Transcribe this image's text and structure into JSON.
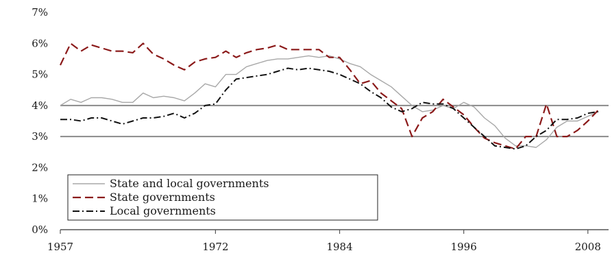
{
  "chart_data": {
    "type": "line",
    "title": "",
    "xlabel": "",
    "ylabel": "",
    "xlim": [
      1957,
      2010
    ],
    "ylim": [
      0,
      7
    ],
    "y_ticks": [
      "0%",
      "1%",
      "2%",
      "3%",
      "4%",
      "5%",
      "6%",
      "7%"
    ],
    "x_ticks": [
      {
        "label": "1957",
        "value": 1957
      },
      {
        "label": "1972",
        "value": 1972
      },
      {
        "label": "1984",
        "value": 1984
      },
      {
        "label": "1996",
        "value": 1996
      },
      {
        "label": "2008",
        "value": 2008
      }
    ],
    "gridlines": [
      4,
      3
    ],
    "legend_position": "bottom-left",
    "series": [
      {
        "name": "State and local governments",
        "color": "#a8a8a8",
        "dash": "solid",
        "x": [
          1957,
          1958,
          1959,
          1960,
          1961,
          1962,
          1963,
          1964,
          1965,
          1966,
          1967,
          1968,
          1969,
          1970,
          1971,
          1972,
          1973,
          1974,
          1975,
          1976,
          1977,
          1978,
          1979,
          1980,
          1981,
          1982,
          1983,
          1984,
          1985,
          1986,
          1987,
          1988,
          1989,
          1990,
          1991,
          1992,
          1993,
          1994,
          1995,
          1996,
          1997,
          1998,
          1999,
          2000,
          2001,
          2002,
          2003,
          2004,
          2005,
          2006,
          2007,
          2008,
          2009
        ],
        "values": [
          4.0,
          4.2,
          4.1,
          4.25,
          4.25,
          4.2,
          4.1,
          4.1,
          4.4,
          4.25,
          4.3,
          4.25,
          4.15,
          4.4,
          4.7,
          4.6,
          5.0,
          5.0,
          5.25,
          5.35,
          5.45,
          5.5,
          5.5,
          5.55,
          5.6,
          5.55,
          5.6,
          5.5,
          5.35,
          5.25,
          5.0,
          4.8,
          4.6,
          4.3,
          4.0,
          3.8,
          3.85,
          4.0,
          3.9,
          4.1,
          3.95,
          3.6,
          3.35,
          2.95,
          2.7,
          2.7,
          2.65,
          2.9,
          3.3,
          3.5,
          3.5,
          3.65,
          3.8
        ]
      },
      {
        "name": "State governments",
        "color": "#8b1a1a",
        "dash": "dashed",
        "x": [
          1957,
          1958,
          1959,
          1960,
          1961,
          1962,
          1963,
          1964,
          1965,
          1966,
          1967,
          1968,
          1969,
          1970,
          1971,
          1972,
          1973,
          1974,
          1975,
          1976,
          1977,
          1978,
          1979,
          1980,
          1981,
          1982,
          1983,
          1984,
          1985,
          1986,
          1987,
          1988,
          1989,
          1990,
          1991,
          1992,
          1993,
          1994,
          1995,
          1996,
          1997,
          1998,
          1999,
          2000,
          2001,
          2002,
          2003,
          2004,
          2005,
          2006,
          2007,
          2008,
          2009
        ],
        "values": [
          5.3,
          6.0,
          5.75,
          5.95,
          5.85,
          5.75,
          5.75,
          5.7,
          6.0,
          5.65,
          5.5,
          5.3,
          5.15,
          5.4,
          5.5,
          5.55,
          5.75,
          5.55,
          5.7,
          5.8,
          5.85,
          5.95,
          5.8,
          5.8,
          5.8,
          5.8,
          5.55,
          5.55,
          5.15,
          4.7,
          4.8,
          4.4,
          4.15,
          3.9,
          3.0,
          3.6,
          3.8,
          4.2,
          3.95,
          3.7,
          3.3,
          2.95,
          2.8,
          2.7,
          2.6,
          3.0,
          3.0,
          4.05,
          3.0,
          3.0,
          3.2,
          3.5,
          3.85
        ]
      },
      {
        "name": "Local governments",
        "color": "#111111",
        "dash": "dashdot",
        "x": [
          1957,
          1958,
          1959,
          1960,
          1961,
          1962,
          1963,
          1964,
          1965,
          1966,
          1967,
          1968,
          1969,
          1970,
          1971,
          1972,
          1973,
          1974,
          1975,
          1976,
          1977,
          1978,
          1979,
          1980,
          1981,
          1982,
          1983,
          1984,
          1985,
          1986,
          1987,
          1988,
          1989,
          1990,
          1991,
          1992,
          1993,
          1994,
          1995,
          1996,
          1997,
          1998,
          1999,
          2000,
          2001,
          2002,
          2003,
          2004,
          2005,
          2006,
          2007,
          2008,
          2009
        ],
        "values": [
          3.55,
          3.55,
          3.5,
          3.6,
          3.6,
          3.5,
          3.4,
          3.5,
          3.6,
          3.6,
          3.65,
          3.75,
          3.6,
          3.75,
          4.0,
          4.05,
          4.5,
          4.85,
          4.9,
          4.95,
          5.0,
          5.1,
          5.2,
          5.15,
          5.2,
          5.15,
          5.1,
          5.0,
          4.85,
          4.7,
          4.45,
          4.25,
          3.95,
          3.8,
          3.9,
          4.1,
          4.05,
          4.05,
          3.9,
          3.6,
          3.3,
          3.0,
          2.7,
          2.65,
          2.6,
          2.7,
          3.0,
          3.2,
          3.55,
          3.55,
          3.6,
          3.75,
          3.8
        ]
      }
    ]
  }
}
